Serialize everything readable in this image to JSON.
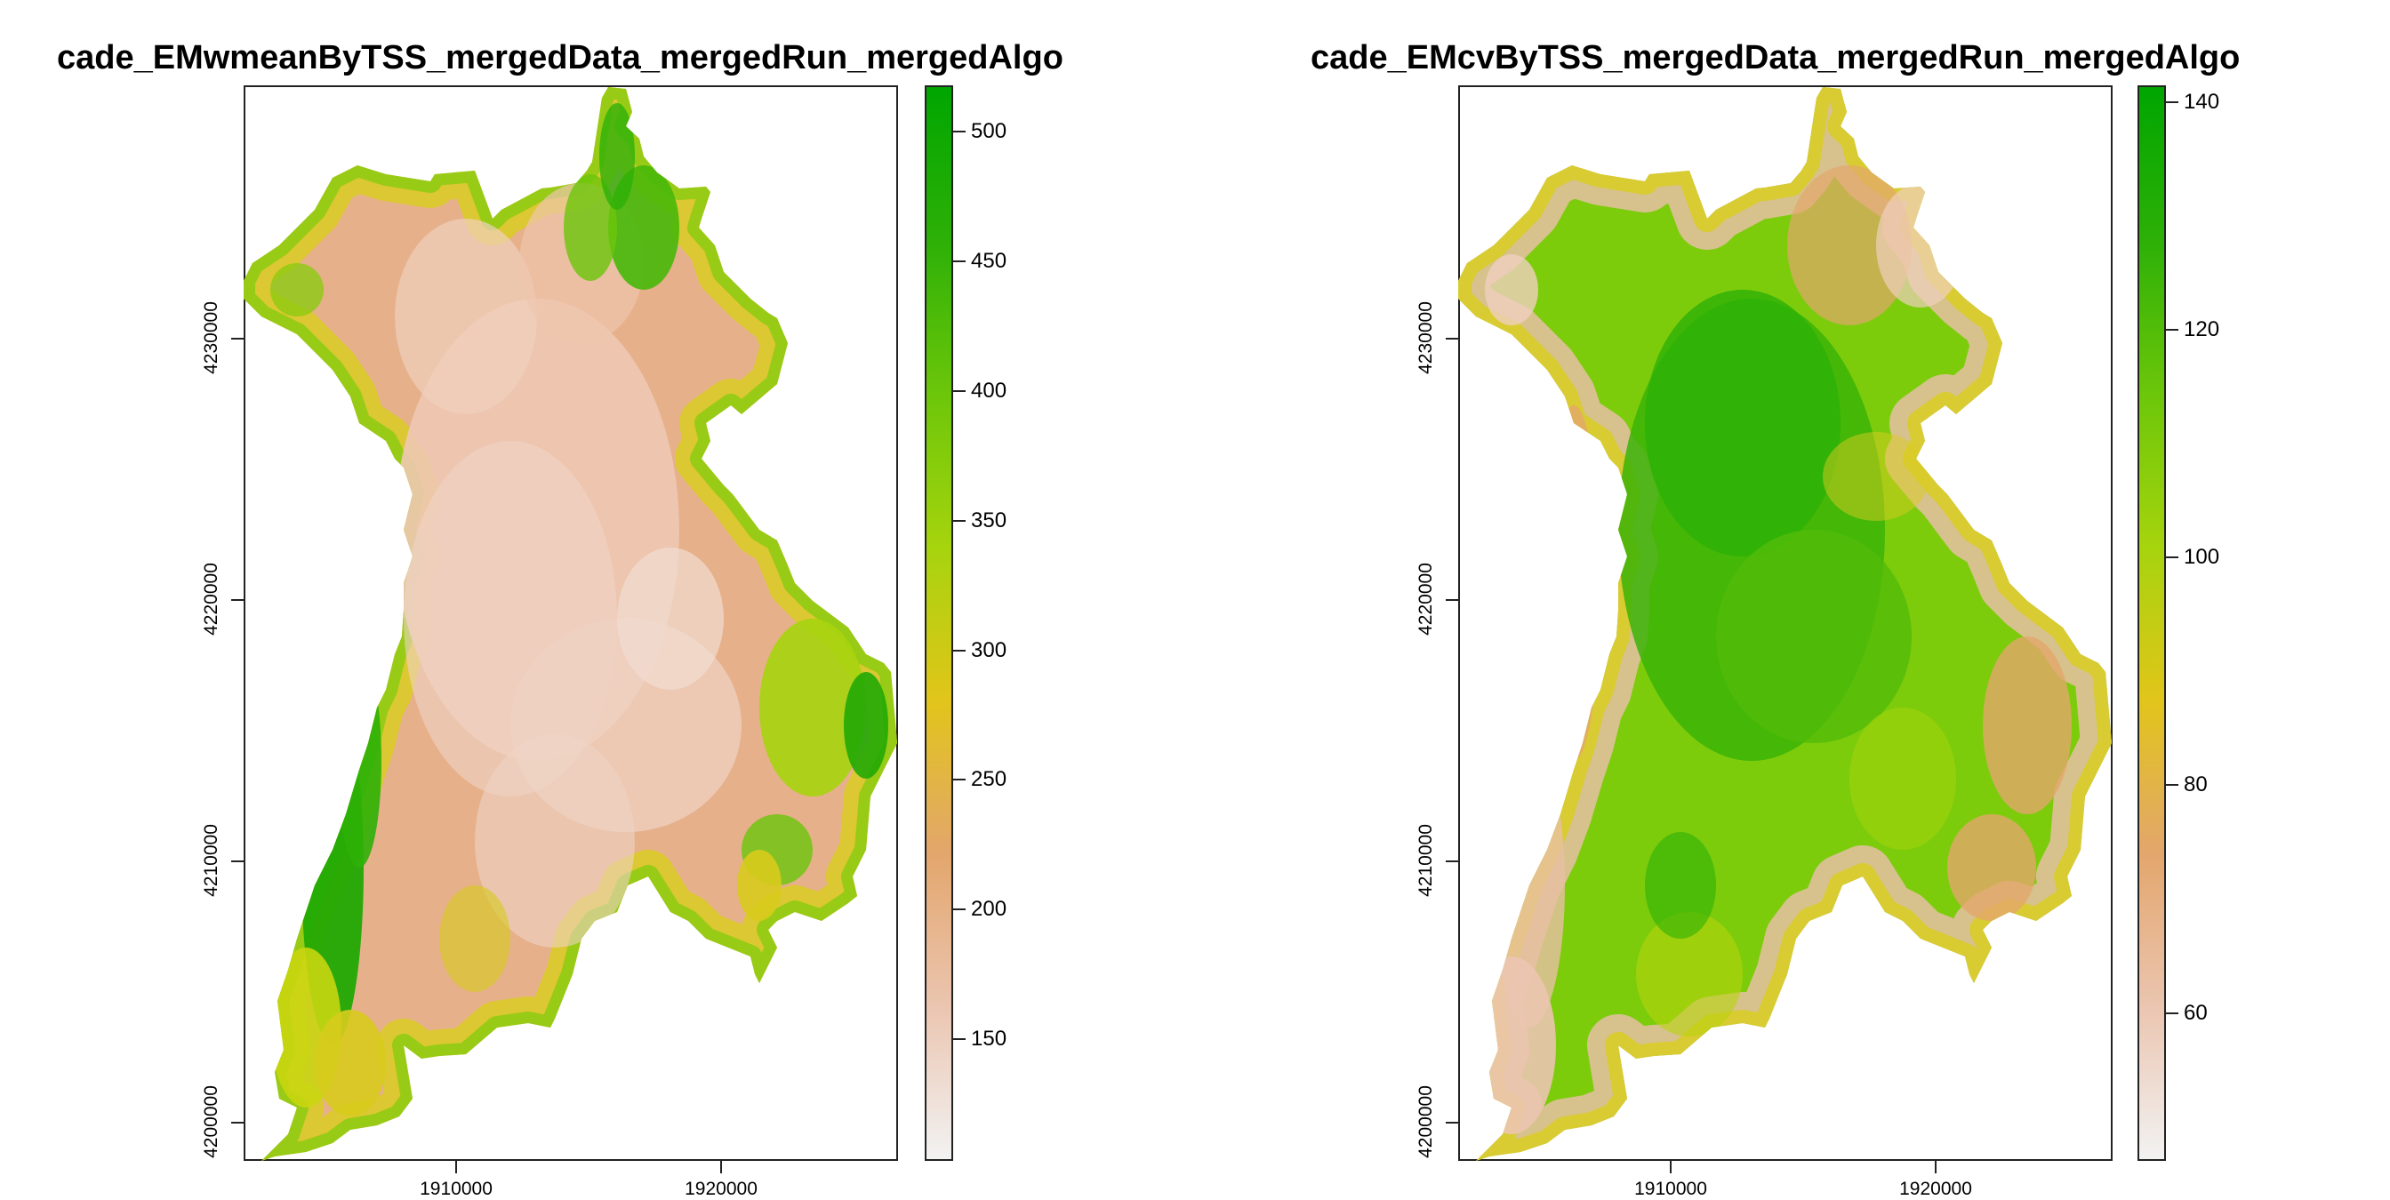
{
  "panels": [
    {
      "id": "left",
      "title": "cade_EMwmeanByTSS_mergedData_mergedRun_mergedAlgo",
      "x_ticks": [
        "1910000",
        "1920000"
      ],
      "y_ticks": [
        "4200000",
        "4210000",
        "4220000",
        "4230000"
      ],
      "legend_ticks": [
        "150",
        "200",
        "250",
        "300",
        "350",
        "400",
        "450",
        "500"
      ],
      "legend_range": [
        103,
        518
      ],
      "palette": [
        "#F2F2F2",
        "#EBC5B0",
        "#E3A66C",
        "#E1C51A",
        "#A6D40D",
        "#6CC60A",
        "#2DB007",
        "#00A600"
      ]
    },
    {
      "id": "right",
      "title": "cade_EMcvByTSS_mergedData_mergedRun_mergedAlgo",
      "x_ticks": [
        "1910000",
        "1920000"
      ],
      "y_ticks": [
        "4200000",
        "4210000",
        "4220000",
        "4230000"
      ],
      "legend_ticks": [
        "60",
        "80",
        "100",
        "120",
        "140"
      ],
      "legend_range": [
        47,
        141.5
      ],
      "palette": [
        "#F2F2F2",
        "#EBC5B0",
        "#E3A66C",
        "#E1C51A",
        "#A6D40D",
        "#6CC60A",
        "#2DB007",
        "#00A600"
      ]
    }
  ]
}
